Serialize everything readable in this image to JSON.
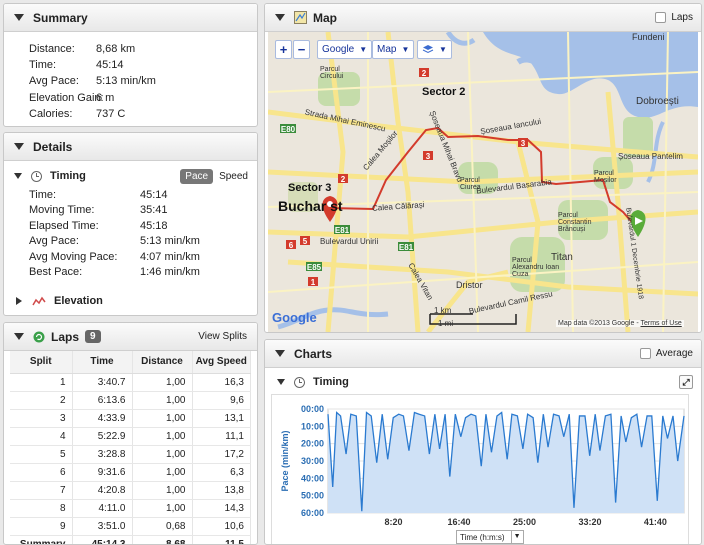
{
  "summary": {
    "title": "Summary",
    "rows": [
      {
        "label": "Distance:",
        "value": "8,68 km"
      },
      {
        "label": "Time:",
        "value": "45:14"
      },
      {
        "label": "Avg Pace:",
        "value": "5:13 min/km"
      },
      {
        "label": "Elevation Gain:",
        "value": "6 m"
      },
      {
        "label": "Calories:",
        "value": "737 C"
      }
    ]
  },
  "details": {
    "title": "Details",
    "timing_title": "Timing",
    "toggle_pace": "Pace",
    "toggle_speed": "Speed",
    "rows": [
      {
        "label": "Time:",
        "value": "45:14"
      },
      {
        "label": "Moving Time:",
        "value": "35:41"
      },
      {
        "label": "Elapsed Time:",
        "value": "45:18"
      },
      {
        "label": "Avg Pace:",
        "value": "5:13 min/km"
      },
      {
        "label": "Avg Moving Pace:",
        "value": "4:07 min/km"
      },
      {
        "label": "Best Pace:",
        "value": "1:46 min/km"
      }
    ],
    "elevation_title": "Elevation"
  },
  "laps": {
    "title": "Laps",
    "count": "9",
    "view_splits": "View Splits",
    "columns": [
      "Split",
      "Time",
      "Distance",
      "Avg Speed"
    ],
    "rows": [
      [
        "1",
        "3:40.7",
        "1,00",
        "16,3"
      ],
      [
        "2",
        "6:13.6",
        "1,00",
        "9,6"
      ],
      [
        "3",
        "4:33.9",
        "1,00",
        "13,1"
      ],
      [
        "4",
        "5:22.9",
        "1,00",
        "11,1"
      ],
      [
        "5",
        "3:28.8",
        "1,00",
        "17,2"
      ],
      [
        "6",
        "9:31.6",
        "1,00",
        "6,3"
      ],
      [
        "7",
        "4:20.8",
        "1,00",
        "13,8"
      ],
      [
        "8",
        "4:11.0",
        "1,00",
        "14,3"
      ],
      [
        "9",
        "3:51.0",
        "0,68",
        "10,6"
      ]
    ],
    "summary_row": [
      "Summary",
      "45:14.3",
      "8,68",
      "11,5"
    ]
  },
  "map": {
    "title": "Map",
    "laps_label": "Laps",
    "zoom_in": "+",
    "zoom_out": "−",
    "provider": "Google",
    "map_type": "Map",
    "labels": {
      "sector2": "Sector 2",
      "sector3": "Sector 3",
      "bucharest": "Buchar  st",
      "dobroesti": "Dobroești",
      "fundeni": "Fundeni",
      "titan": "Titan",
      "dristor": "Dristor",
      "mihai_eminescu": "Strada Mihai Eminescu",
      "calea_mosilor": "Calea Moșilor",
      "iancului": "Șoseaua Iancului",
      "pantelimon": "Șoseaua Pantelim",
      "basarabia": "Bulevardul Basarabia",
      "calarasi": "Calea Călărași",
      "unirii": "Bulevardul Unirii",
      "vitan": "Calea Vitan",
      "camil_ressu": "Bulevardul Camil Ressu",
      "mihai_bravu": "Șoseaua Mihai Bravu",
      "parc_circului": "Parcul Circului",
      "parc_ciurea": "Parcul Ciurea",
      "parc_mosilor": "Parcul Moșilor",
      "parc_brancusi": "Parcul Constantin Brâncuși",
      "parc_cuza": "Parcul Alexandru Ioan Cuza",
      "decembrie": "Bulevardul 1 Decembrie 1918",
      "scale_km": "1 km",
      "scale_mi": "1 mi",
      "attrib_data": "Map data ©2013 Google",
      "attrib_terms": "Terms of Use",
      "google_logo": "Google",
      "e80": "E80",
      "e81": "E81",
      "e85": "E85",
      "r1": "1",
      "r2": "2",
      "r3": "3",
      "r5": "5",
      "r6": "6"
    }
  },
  "charts": {
    "title": "Charts",
    "average_label": "Average",
    "timing_title": "Timing",
    "axis_select": "Time (h:m:s)"
  },
  "chart_data": {
    "type": "area",
    "title": "Timing",
    "ylabel": "Pace (min/km)",
    "xlabel": "Time (h:m:s)",
    "y_ticks": [
      "00:00",
      "10:00",
      "20:00",
      "30:00",
      "40:00",
      "50:00",
      "60:00"
    ],
    "x_ticks": [
      "8:20",
      "16:40",
      "25:00",
      "33:20",
      "41:40"
    ],
    "y_range_minutes": [
      0,
      60
    ],
    "x_range_minutes": [
      0,
      45.3
    ],
    "x_minutes": [
      0.0,
      0.6,
      1.1,
      1.6,
      2.3,
      2.9,
      3.6,
      4.3,
      4.9,
      5.5,
      6.2,
      6.9,
      7.6,
      8.3,
      9.0,
      9.6,
      10.3,
      11.0,
      11.6,
      12.3,
      12.9,
      13.6,
      14.2,
      14.9,
      15.5,
      16.2,
      16.9,
      17.5,
      18.2,
      18.8,
      19.5,
      20.1,
      20.8,
      21.5,
      22.1,
      22.8,
      23.4,
      24.1,
      24.8,
      25.4,
      26.1,
      26.7,
      27.4,
      28.0,
      28.7,
      29.4,
      30.0,
      30.7,
      31.3,
      32.0,
      32.7,
      33.3,
      34.0,
      34.6,
      35.3,
      36.0,
      36.6,
      37.3,
      37.9,
      38.6,
      39.3,
      39.9,
      40.6,
      41.2,
      41.9,
      42.6,
      43.2,
      43.9,
      44.5,
      45.3
    ],
    "pace_minutes": [
      3,
      45,
      2,
      4,
      26,
      3,
      4,
      59,
      2,
      4,
      31,
      3,
      29,
      5,
      3,
      4,
      24,
      2,
      3,
      4,
      26,
      3,
      23,
      3,
      39,
      3,
      16,
      5,
      3,
      4,
      33,
      3,
      25,
      4,
      2,
      29,
      3,
      4,
      23,
      3,
      5,
      31,
      3,
      22,
      3,
      4,
      16,
      3,
      57,
      4,
      4,
      27,
      3,
      24,
      4,
      3,
      54,
      4,
      19,
      5,
      3,
      22,
      4,
      4,
      53,
      4,
      17,
      4,
      30,
      4
    ]
  }
}
